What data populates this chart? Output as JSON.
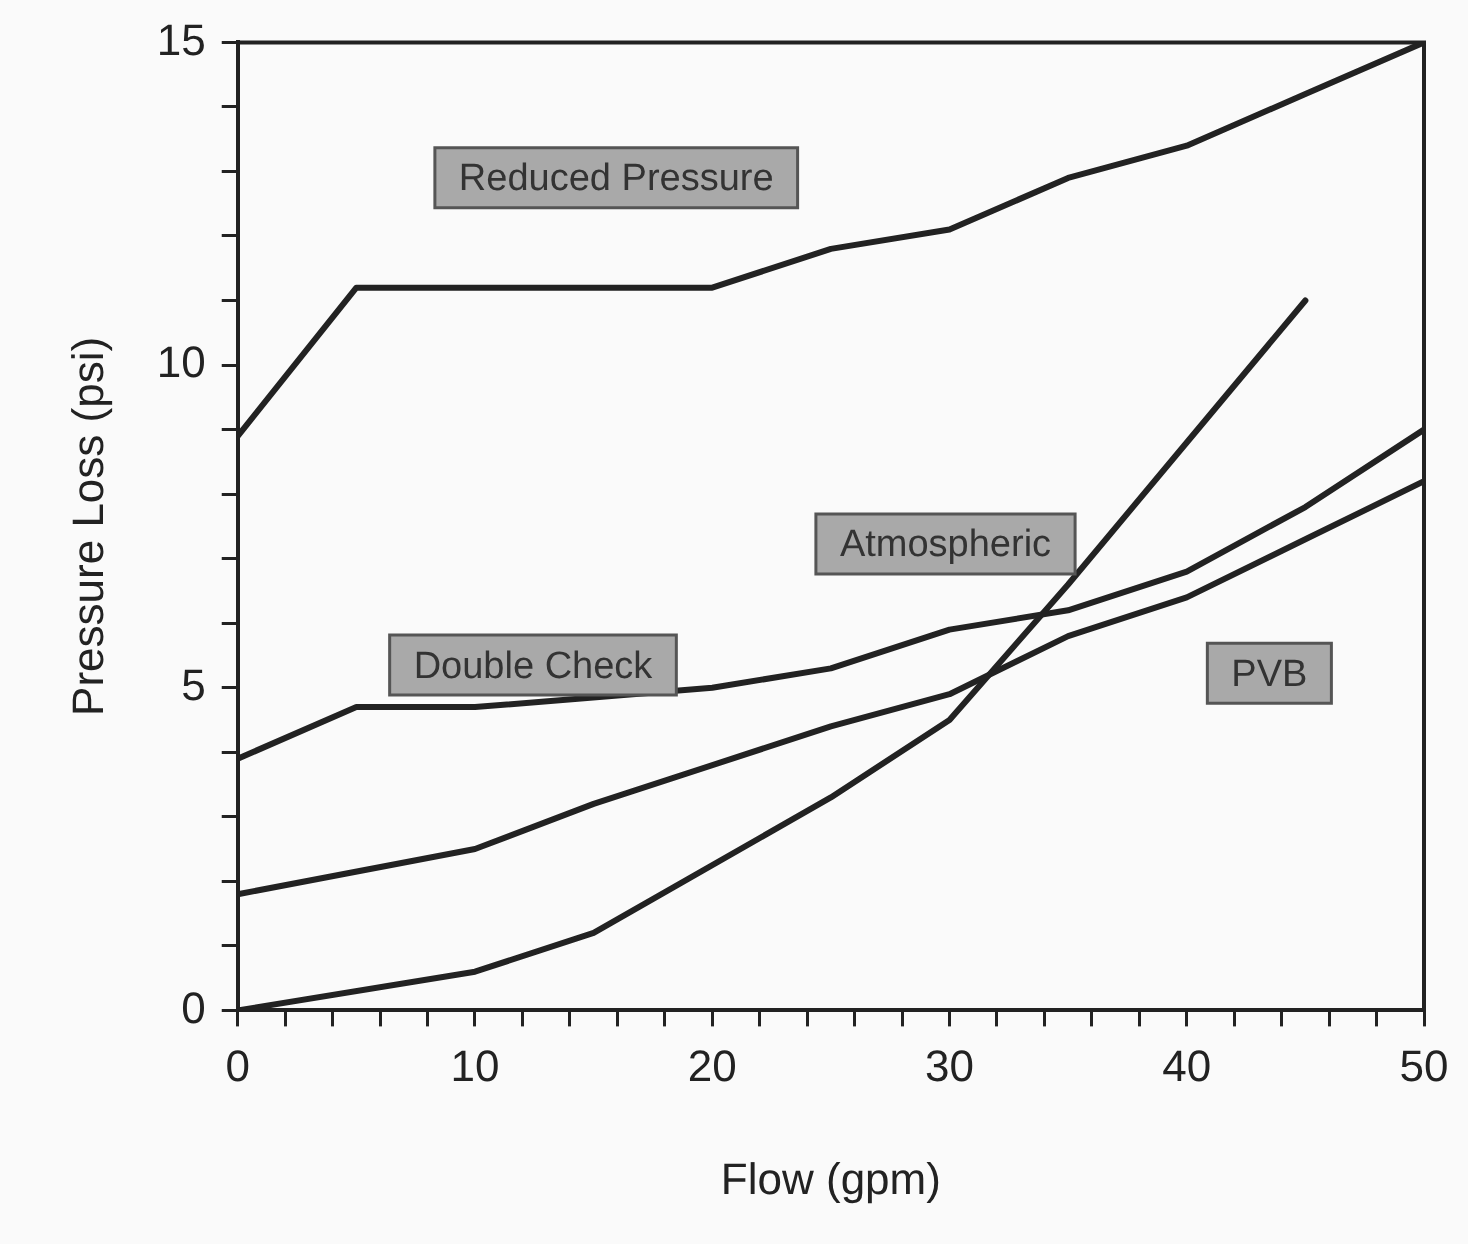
{
  "chart_data": {
    "type": "line",
    "xlabel": "Flow (gpm)",
    "ylabel": "Pressure Loss (psi)",
    "xlim": [
      0,
      50
    ],
    "ylim": [
      0,
      15
    ],
    "xticks": [
      0,
      {
        "value": 2,
        "label": null
      },
      {
        "value": 4,
        "label": null
      },
      {
        "value": 6,
        "label": null
      },
      {
        "value": 8,
        "label": null
      },
      10,
      {
        "value": 12,
        "label": null
      },
      {
        "value": 14,
        "label": null
      },
      {
        "value": 16,
        "label": null
      },
      {
        "value": 18,
        "label": null
      },
      20,
      {
        "value": 22,
        "label": null
      },
      {
        "value": 24,
        "label": null
      },
      {
        "value": 26,
        "label": null
      },
      {
        "value": 28,
        "label": null
      },
      30,
      {
        "value": 32,
        "label": null
      },
      {
        "value": 34,
        "label": null
      },
      {
        "value": 36,
        "label": null
      },
      {
        "value": 38,
        "label": null
      },
      40,
      {
        "value": 42,
        "label": null
      },
      {
        "value": 44,
        "label": null
      },
      {
        "value": 46,
        "label": null
      },
      {
        "value": 48,
        "label": null
      },
      50
    ],
    "yticks": [
      0,
      {
        "value": 1,
        "label": null
      },
      {
        "value": 2,
        "label": null
      },
      {
        "value": 3,
        "label": null
      },
      {
        "value": 4,
        "label": null
      },
      5,
      {
        "value": 6,
        "label": null
      },
      {
        "value": 7,
        "label": null
      },
      {
        "value": 8,
        "label": null
      },
      {
        "value": 9,
        "label": null
      },
      10,
      {
        "value": 11,
        "label": null
      },
      {
        "value": 12,
        "label": null
      },
      {
        "value": 13,
        "label": null
      },
      {
        "value": 14,
        "label": null
      },
      15
    ],
    "grid": false,
    "legend": false,
    "marker": "none",
    "line_style": "solid",
    "series": [
      {
        "name": "Reduced Pressure",
        "color": "#222222",
        "x": [
          0,
          5,
          20,
          25,
          30,
          35,
          40,
          45,
          50
        ],
        "values": [
          8.9,
          11.2,
          11.2,
          11.8,
          12.1,
          12.9,
          13.4,
          14.2,
          15
        ]
      },
      {
        "name": "Double Check",
        "color": "#222222",
        "x": [
          0,
          5,
          10,
          20,
          25,
          30,
          35,
          40,
          45,
          50
        ],
        "values": [
          3.9,
          4.7,
          4.7,
          5.0,
          5.3,
          5.9,
          6.2,
          6.8,
          7.8,
          9.0
        ]
      },
      {
        "name": "PVB",
        "color": "#222222",
        "x": [
          0,
          10,
          15,
          25,
          30,
          35,
          40,
          45,
          50
        ],
        "values": [
          1.8,
          2.5,
          3.2,
          4.4,
          4.9,
          5.8,
          6.4,
          7.3,
          8.2
        ]
      },
      {
        "name": "Atmospheric",
        "color": "#222222",
        "x": [
          0,
          10,
          15,
          25,
          30,
          35,
          40,
          45
        ],
        "values": [
          0,
          0.6,
          1.2,
          3.3,
          4.5,
          6.6,
          8.8,
          11.0
        ]
      }
    ]
  }
}
